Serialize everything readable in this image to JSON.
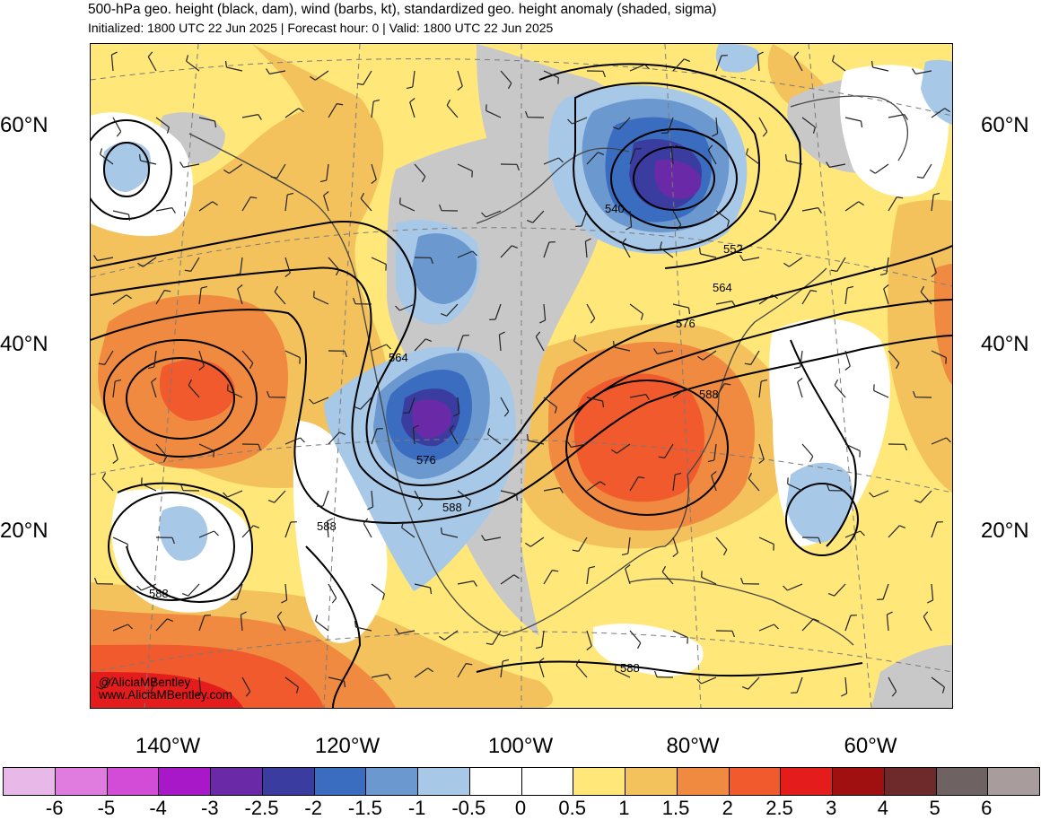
{
  "header": {
    "title": "500-hPa geo. height (black, dam), wind (barbs, kt), standardized geo. height anomaly (shaded, sigma)",
    "subtitle": "Initialized: 1800 UTC 22 Jun 2025 | Forecast hour: 0 | Valid: 1800 UTC 22 Jun 2025"
  },
  "map": {
    "lat_labels": [
      "60°N",
      "40°N",
      "20°N"
    ],
    "lon_labels": [
      "140°W",
      "120°W",
      "100°W",
      "80°W",
      "60°W"
    ],
    "contour_labels": [
      "540",
      "552",
      "564",
      "576",
      "588",
      "564",
      "576",
      "588",
      "588",
      "588",
      "588"
    ],
    "credit": [
      "@AliciaMBentley",
      "www.AliciaMBentley.com"
    ]
  },
  "colorbar": {
    "labels": [
      "-6",
      "-5",
      "-4",
      "-3",
      "-2.5",
      "-2",
      "-1.5",
      "-1",
      "-0.5",
      "0",
      "0.5",
      "1",
      "1.5",
      "2",
      "2.5",
      "3",
      "4",
      "5",
      "6"
    ],
    "colors": [
      "#e8b8e8",
      "#e07ce0",
      "#d24cd8",
      "#a818c8",
      "#6a2aa8",
      "#3a3ca0",
      "#3a6cc0",
      "#6c98d0",
      "#a8c8e8",
      "#ffffff",
      "#ffffff",
      "#ffe879",
      "#f4c25c",
      "#f08a40",
      "#f05a2c",
      "#e41c1c",
      "#a01010",
      "#6e2a2a",
      "#6e6262",
      "#a89c9c"
    ]
  },
  "colors": {
    "land_gray": "#c8c8c8",
    "background": "#ffe879"
  }
}
